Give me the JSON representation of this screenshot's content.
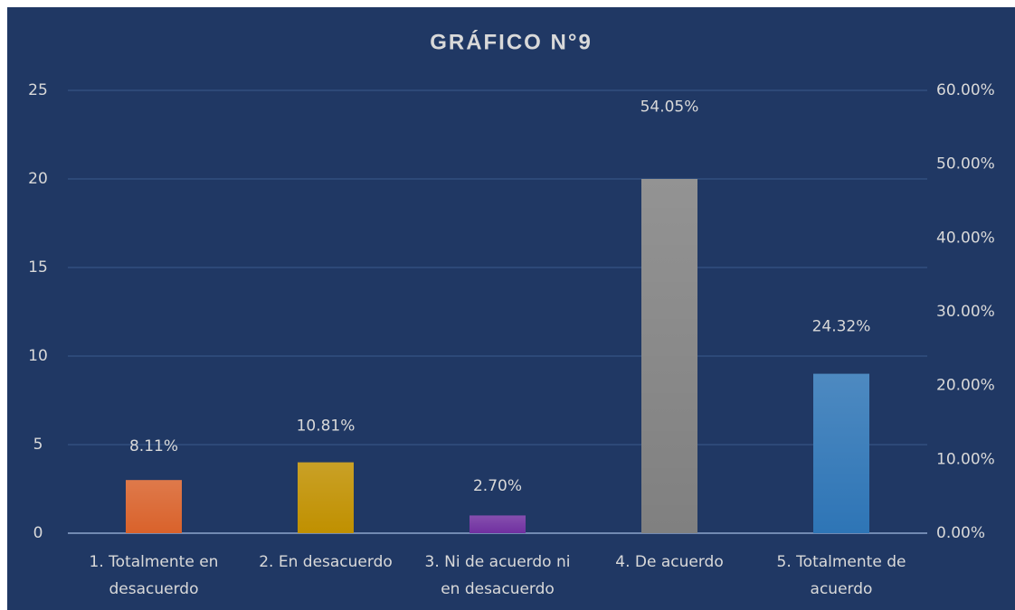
{
  "chart_data": {
    "type": "bar",
    "title": "GRÁFICO N°9",
    "categories": [
      "1. Totalmente en desacuerdo",
      "2. En desacuerdo",
      "3. Ni de acuerdo ni en desacuerdo",
      "4. De acuerdo",
      "5. Totalmente de acuerdo"
    ],
    "series": [
      {
        "values": [
          3,
          4,
          1,
          20,
          9
        ],
        "colors": [
          "#d9622b",
          "#c09000",
          "#7030a0",
          "#808080",
          "#2e75b6"
        ]
      },
      {
        "axis": "y2",
        "values": [
          8.11,
          10.81,
          2.7,
          54.05,
          24.32
        ],
        "value_labels": [
          "8.11%",
          "10.81%",
          "2.70%",
          "54.05%",
          "24.32%"
        ]
      }
    ],
    "ylim": [
      0,
      25
    ],
    "yticks": [
      0,
      5,
      10,
      15,
      20,
      25
    ],
    "y2lim": [
      0,
      60
    ],
    "y2ticks": [
      {
        "value": 0,
        "label": "0.00%"
      },
      {
        "value": 10,
        "label": "10.00%"
      },
      {
        "value": 20,
        "label": "20.00%"
      },
      {
        "value": 30,
        "label": "30.00%"
      },
      {
        "value": 40,
        "label": "40.00%"
      },
      {
        "value": 50,
        "label": "50.00%"
      },
      {
        "value": 60,
        "label": "60.00%"
      }
    ],
    "grid": true
  }
}
